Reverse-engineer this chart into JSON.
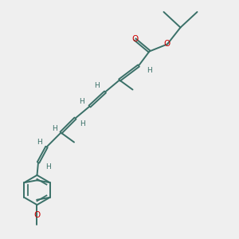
{
  "bg_color": "#efefef",
  "bond_color": "#3a7068",
  "o_color": "#cc0000",
  "line_width": 1.4,
  "font_size": 6.5,
  "xlim": [
    0,
    10
  ],
  "ylim": [
    0,
    10
  ]
}
